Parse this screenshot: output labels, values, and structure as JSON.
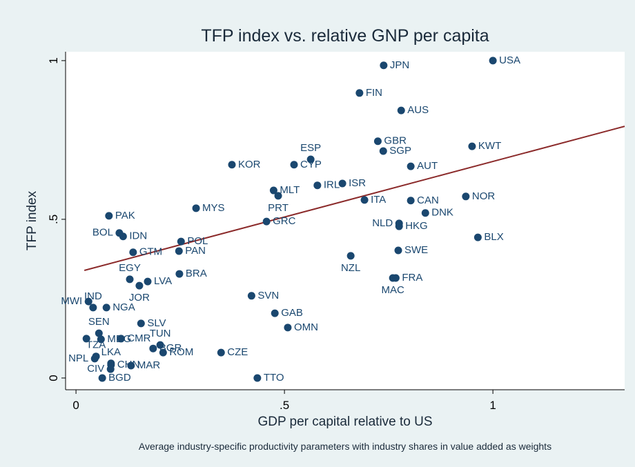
{
  "chart_data": {
    "type": "scatter",
    "title": "TFP index vs. relative GNP per capita",
    "xlabel": "GDP per capital relative to US",
    "ylabel": "TFP index",
    "caption": "Average industry-specific productivity parameters with industry shares in value added as weights",
    "color": "#1a476f",
    "xlim": [
      -0.025,
      1.316
    ],
    "ylim": [
      -0.037,
      1.028
    ],
    "xticks": [
      0,
      {
        "value": 0.5,
        "label": ".5"
      },
      1
    ],
    "yticks": [
      0,
      {
        "value": 0.5,
        "label": ".5"
      },
      1
    ],
    "labels": [
      "USA",
      "JPN",
      "FIN",
      "AUS",
      "GBR",
      "SGP",
      "KWT",
      "ESP",
      "KOR",
      "CYP",
      "AUT",
      "ISR",
      "IRL",
      "MLT",
      "PRT",
      "ITA",
      "CAN",
      "NOR",
      "MYS",
      "DNK",
      "PAK",
      "GRC",
      "NLD",
      "HKG",
      "BOL",
      "IDN",
      "BLX",
      "POL",
      "SWE",
      "GTM",
      "PAN",
      "NZL",
      "EGY",
      "BRA",
      "FRA",
      "MAC",
      "LVA",
      "JOR",
      "SVN",
      "MWI",
      "IND",
      "NGA",
      "GAB",
      "SLV",
      "OMN",
      "SEN",
      null,
      "MDG",
      "CMR",
      "TUN",
      "BGR",
      "ROM",
      "CZE",
      "TZA",
      "NPL",
      "LKA",
      "CHN",
      "MAR",
      "CIV",
      "BGD",
      "TTO"
    ],
    "x": [
      1.0,
      0.738,
      0.68,
      0.78,
      0.724,
      0.737,
      0.95,
      0.563,
      0.374,
      0.523,
      0.803,
      0.639,
      0.579,
      0.474,
      0.485,
      0.692,
      0.803,
      0.935,
      0.288,
      0.838,
      0.079,
      0.457,
      0.775,
      0.775,
      0.104,
      0.113,
      0.964,
      0.252,
      0.773,
      0.137,
      0.247,
      0.659,
      0.129,
      0.248,
      0.767,
      0.76,
      0.172,
      0.152,
      0.421,
      0.03,
      0.041,
      0.073,
      0.477,
      0.156,
      0.508,
      0.055,
      0.025,
      0.06,
      0.108,
      0.202,
      0.185,
      0.209,
      0.348,
      0.048,
      0.045,
      0.084,
      0.084,
      0.132,
      0.083,
      0.063,
      0.435
    ],
    "values": [
      1.0,
      0.985,
      0.898,
      0.843,
      0.746,
      0.715,
      0.73,
      0.689,
      0.672,
      0.672,
      0.667,
      0.613,
      0.607,
      0.591,
      0.574,
      0.561,
      0.559,
      0.572,
      0.535,
      0.52,
      0.511,
      0.493,
      0.487,
      0.478,
      0.457,
      0.446,
      0.443,
      0.43,
      0.402,
      0.396,
      0.4,
      0.385,
      0.311,
      0.328,
      0.315,
      0.315,
      0.304,
      0.291,
      0.259,
      0.241,
      0.222,
      0.222,
      0.204,
      0.172,
      0.159,
      0.141,
      0.124,
      0.122,
      0.124,
      0.104,
      0.093,
      0.08,
      0.08,
      0.068,
      0.061,
      0.046,
      0.041,
      0.039,
      0.028,
      0.0,
      0.0
    ],
    "label_positions": [
      "right",
      "right",
      "right",
      "right",
      "right",
      "right",
      "right",
      "above",
      "right",
      "right",
      "right",
      "right",
      "right",
      "right",
      "below",
      "right",
      "right",
      "right",
      "right",
      "right",
      "right",
      "right",
      "left",
      "right",
      "left",
      "right",
      "right",
      "right",
      "right",
      "right",
      "right",
      "below",
      "above",
      "right",
      "right",
      "below",
      "right",
      "below",
      "right",
      "left",
      "above",
      "right",
      "right",
      "right",
      "right",
      "above",
      "right",
      "right",
      "right",
      "above",
      "right",
      "right",
      "right",
      "above",
      "left",
      "above",
      "right",
      "right",
      "left",
      "right",
      "right"
    ],
    "fit": {
      "color": "#8b2a2a",
      "x": [
        0.02,
        1.316
      ],
      "values": [
        0.339,
        0.793
      ]
    }
  }
}
